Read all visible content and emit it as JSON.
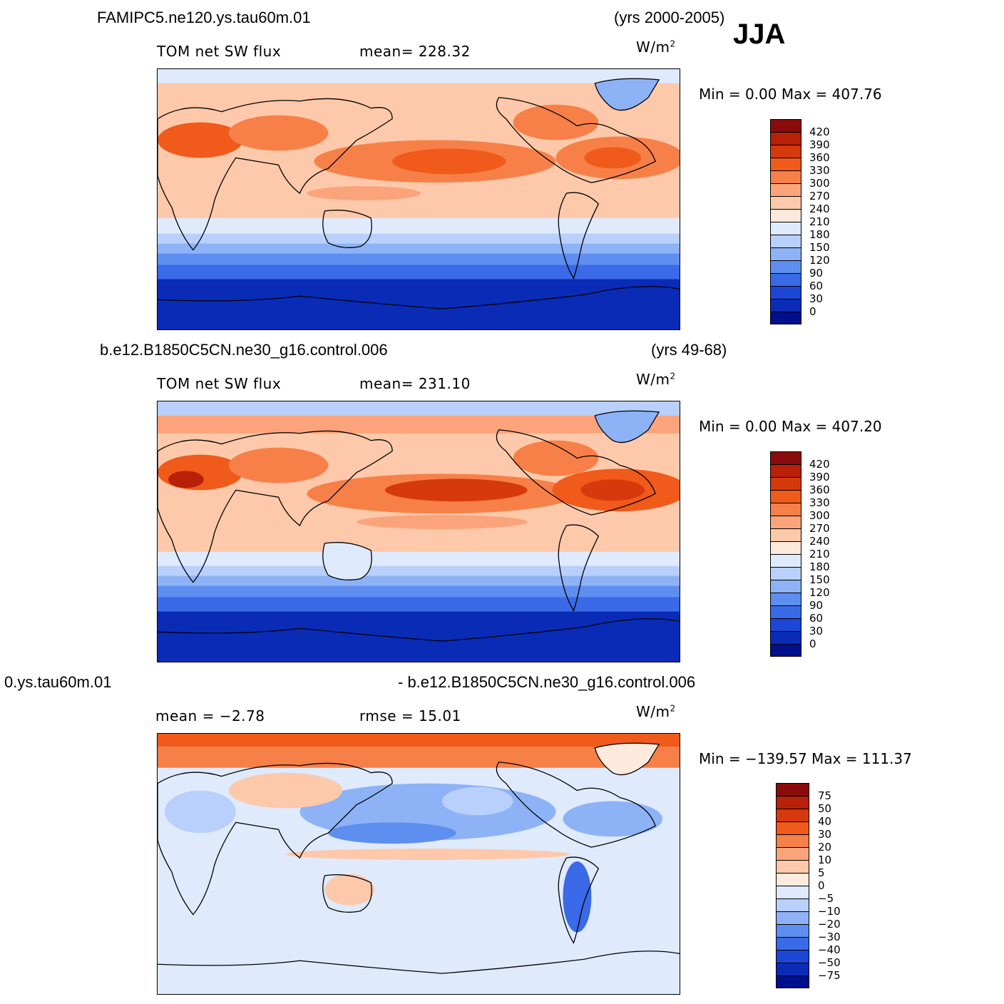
{
  "season": "JJA",
  "units_superscript": "2",
  "panels": [
    {
      "case_title": "FAMIPC5.ne120.ys.tau60m.01",
      "years": "(yrs 2000-2005)",
      "variable": "TOM net SW flux",
      "stat": "mean= 228.32",
      "units": "W/m",
      "minmax": "Min =    0.00 Max = 407.76",
      "colorbar_labels": [
        "420",
        "390",
        "360",
        "330",
        "300",
        "270",
        "240",
        "210",
        "180",
        "150",
        "120",
        "90",
        "60",
        "30",
        "0"
      ]
    },
    {
      "case_title": "b.e12.B1850C5CN.ne30_g16.control.006",
      "years": "(yrs 49-68)",
      "variable": "TOM net SW flux",
      "stat": "mean= 231.10",
      "units": "W/m",
      "minmax": "Min =    0.00 Max = 407.20",
      "colorbar_labels": [
        "420",
        "390",
        "360",
        "330",
        "300",
        "270",
        "240",
        "210",
        "180",
        "150",
        "120",
        "90",
        "60",
        "30",
        "0"
      ]
    },
    {
      "case_title_left": "0.ys.tau60m.01",
      "case_title_right": "- b.e12.B1850C5CN.ne30_g16.control.006",
      "stat_mean": "mean =  −2.78",
      "stat_rmse": "rmse =   15.01",
      "units": "W/m",
      "minmax": "Min = −139.57 Max = 111.37",
      "colorbar_labels": [
        "75",
        "50",
        "40",
        "30",
        "20",
        "10",
        "5",
        "0",
        "−5",
        "−10",
        "−20",
        "−30",
        "−40",
        "−50",
        "−75"
      ]
    }
  ],
  "colors": {
    "abs_scale": [
      "#8a0b0b",
      "#b82008",
      "#d63a0c",
      "#f05a1a",
      "#f78048",
      "#fba47c",
      "#fdc9aa",
      "#feeadc",
      "#dfeafc",
      "#b8d0fb",
      "#8db2f6",
      "#5e8ef0",
      "#3a6ae8",
      "#1c46d6",
      "#0a2bb6",
      "#000f8c"
    ],
    "diff_scale": [
      "#8a0b0b",
      "#b82008",
      "#d63a0c",
      "#f05a1a",
      "#f78048",
      "#fba47c",
      "#fdc9aa",
      "#feeadc",
      "#dfeafc",
      "#b8d0fb",
      "#8db2f6",
      "#5e8ef0",
      "#3a6ae8",
      "#1c46d6",
      "#0a2bb6",
      "#000f8c"
    ]
  }
}
